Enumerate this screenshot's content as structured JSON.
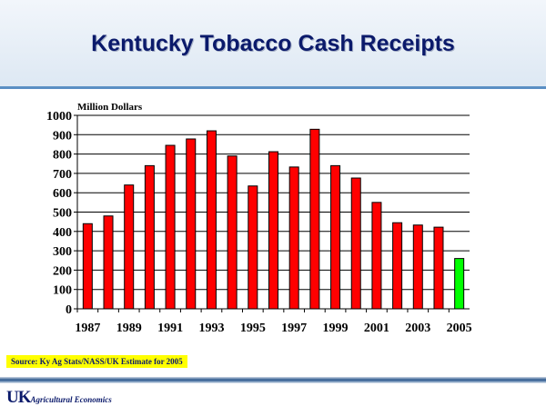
{
  "slide": {
    "title": "Kentucky Tobacco Cash Receipts",
    "source": "Source:  Ky Ag Stats/NASS/UK Estimate for 2005",
    "logo": {
      "mark": "UK",
      "text": "Agricultural Economics"
    }
  },
  "colors": {
    "bar": "#ff0000",
    "estimate_bar": "#00ff00",
    "title": "#0b1a6b"
  },
  "chart_data": {
    "type": "bar",
    "title": "",
    "ylabel": "Million Dollars",
    "xlabel": "",
    "ylim": [
      0,
      1000
    ],
    "yticks": [
      0,
      100,
      200,
      300,
      400,
      500,
      600,
      700,
      800,
      900,
      1000
    ],
    "categories": [
      "1987",
      "1988",
      "1989",
      "1990",
      "1991",
      "1992",
      "1993",
      "1994",
      "1995",
      "1996",
      "1997",
      "1998",
      "1999",
      "2000",
      "2001",
      "2002",
      "2003",
      "2004",
      "2005"
    ],
    "xtick_labels": [
      "1987",
      "1989",
      "1991",
      "1993",
      "1995",
      "1997",
      "1999",
      "2001",
      "2003",
      "2005"
    ],
    "values": [
      440,
      480,
      640,
      740,
      845,
      878,
      920,
      790,
      635,
      812,
      733,
      928,
      740,
      676,
      550,
      445,
      433,
      422,
      260
    ],
    "highlight": {
      "category": "2005",
      "note": "estimate"
    },
    "grid": true,
    "legend": false
  }
}
